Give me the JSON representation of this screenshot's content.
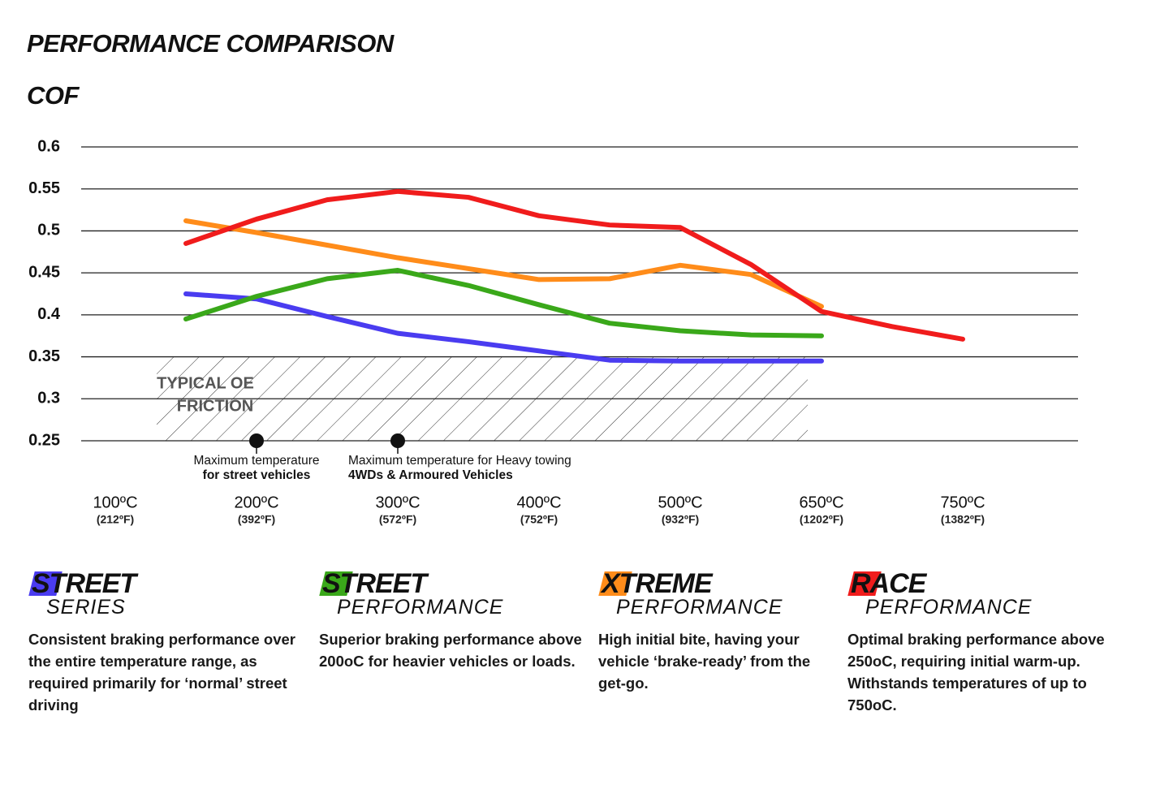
{
  "chart_data": {
    "type": "line",
    "title": "PERFORMANCE COMPARISON",
    "y_label": "COF",
    "categories": [
      "100ºC",
      null,
      "200ºC",
      null,
      "300ºC",
      null,
      "400ºC",
      null,
      "500ºC",
      null,
      "650ºC",
      null,
      "750ºC"
    ],
    "category_sublabels": [
      "(212ºF)",
      null,
      "(392ºF)",
      null,
      "(572ºF)",
      null,
      "(752ºF)",
      null,
      "(932ºF)",
      null,
      "(1202ºF)",
      null,
      "(1382ºF)"
    ],
    "ylim": [
      0.25,
      0.6
    ],
    "yticks": [
      0.25,
      0.3,
      0.35,
      0.4,
      0.45,
      0.5,
      0.55,
      0.6
    ],
    "grid": true,
    "series": [
      {
        "color": "#4a3cf0",
        "values": [
          null,
          0.425,
          0.419,
          0.398,
          0.378,
          0.368,
          0.357,
          0.346,
          0.345,
          0.345,
          0.345,
          null,
          null
        ]
      },
      {
        "color": "#3aa81a",
        "values": [
          null,
          0.395,
          0.422,
          0.443,
          0.453,
          0.435,
          0.412,
          0.39,
          0.381,
          0.376,
          0.375,
          null,
          null
        ]
      },
      {
        "color": "#ff8c1a",
        "values": [
          null,
          0.512,
          0.498,
          0.483,
          0.468,
          0.455,
          0.442,
          0.443,
          0.459,
          0.448,
          0.41,
          null,
          null
        ]
      },
      {
        "color": "#f01c1c",
        "values": [
          null,
          0.485,
          0.514,
          0.537,
          0.547,
          0.54,
          0.518,
          0.507,
          0.504,
          0.46,
          0.404,
          0.386,
          0.371
        ]
      }
    ],
    "shaded_region": {
      "label": [
        "TYPICAL OE",
        "FRICTION"
      ]
    },
    "annotations": [
      {
        "x": "200ºC",
        "lines": [
          "Maximum temperature",
          "for street vehicles"
        ]
      },
      {
        "x": "300ºC",
        "lines": [
          "Maximum temperature for Heavy towing",
          "4WDs & Armoured Vehicles"
        ]
      }
    ]
  },
  "products": [
    {
      "name": "STREET",
      "subname": "SERIES",
      "color": "#4a3cf0",
      "description": "Consistent braking performance over the entire temperature range, as required primarily for ‘normal’ street driving"
    },
    {
      "name": "STREET",
      "subname": "PERFORMANCE",
      "color": "#3aa81a",
      "description": "Superior braking performance above 200oC for heavier vehicles or loads."
    },
    {
      "name": "XTREME",
      "subname": "PERFORMANCE",
      "color": "#ff8c1a",
      "description": "High initial bite, having your vehicle ‘brake-ready’ from the get-go."
    },
    {
      "name": "RACE",
      "subname": "PERFORMANCE",
      "color": "#f01c1c",
      "description": "Optimal braking performance above 250oC, requiring initial warm-up. Withstands temperatures of up to 750oC."
    }
  ]
}
